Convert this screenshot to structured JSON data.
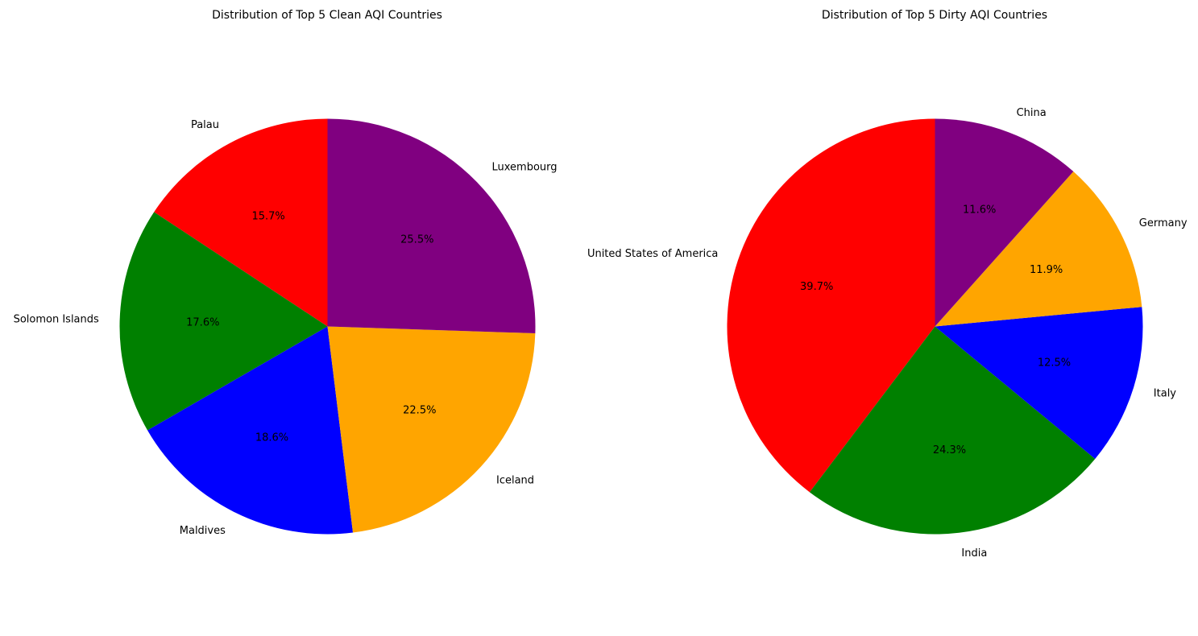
{
  "chart_data": [
    {
      "type": "pie",
      "title": "Distribution of Top 5 Clean AQI Countries",
      "start_angle_deg": 90,
      "direction": "counterclockwise",
      "categories": [
        "Palau",
        "Solomon Islands",
        "Maldives",
        "Iceland",
        "Luxembourg"
      ],
      "values": [
        15.7,
        17.6,
        18.6,
        22.5,
        25.5
      ],
      "value_labels": [
        "15.7%",
        "17.6%",
        "18.6%",
        "22.5%",
        "25.5%"
      ],
      "colors": [
        "#ff0000",
        "#008000",
        "#0000ff",
        "#ffa500",
        "#800080"
      ]
    },
    {
      "type": "pie",
      "title": "Distribution of Top 5 Dirty AQI Countries",
      "start_angle_deg": 90,
      "direction": "counterclockwise",
      "categories": [
        "United States of America",
        "India",
        "Italy",
        "Germany",
        "China"
      ],
      "values": [
        39.7,
        24.3,
        12.5,
        11.9,
        11.6
      ],
      "value_labels": [
        "39.7%",
        "24.3%",
        "12.5%",
        "11.9%",
        "11.6%"
      ],
      "colors": [
        "#ff0000",
        "#008000",
        "#0000ff",
        "#ffa500",
        "#800080"
      ]
    }
  ]
}
